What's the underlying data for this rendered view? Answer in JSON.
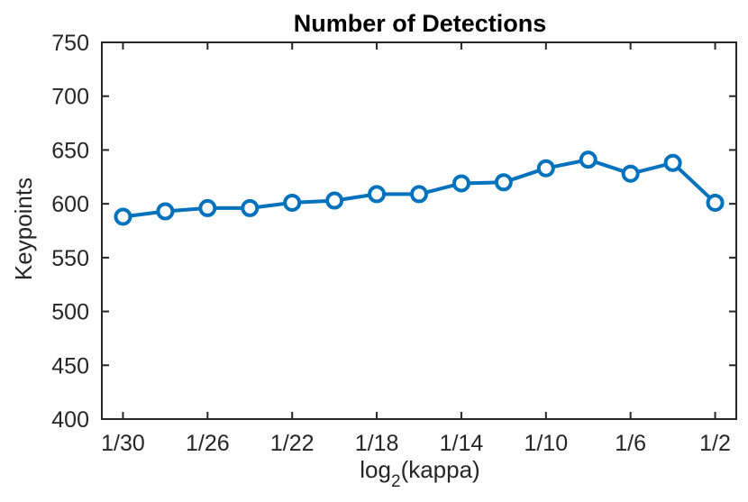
{
  "chart_data": {
    "type": "line",
    "title": "Number of Detections",
    "xlabel": "log",
    "xlabel_subscript": "2",
    "xlabel_suffix": "(kappa)",
    "ylabel": "Keypoints",
    "ylim": [
      400,
      750
    ],
    "yticks": [
      "400",
      "450",
      "500",
      "550",
      "600",
      "650",
      "700",
      "750"
    ],
    "xticks": [
      {
        "value": 30,
        "label": "1/30"
      },
      {
        "value": 26,
        "label": "1/26"
      },
      {
        "value": 22,
        "label": "1/22"
      },
      {
        "value": 18,
        "label": "1/18"
      },
      {
        "value": 14,
        "label": "1/14"
      },
      {
        "value": 10,
        "label": "1/10"
      },
      {
        "value": 6,
        "label": "1/6"
      },
      {
        "value": 2,
        "label": "1/2"
      }
    ],
    "xlim": [
      31,
      1
    ],
    "grid": false,
    "marker": "circle",
    "series_color": "#0072BD",
    "x": [
      30,
      28,
      26,
      24,
      22,
      20,
      18,
      16,
      14,
      12,
      10,
      8,
      6,
      4,
      2
    ],
    "values": [
      588,
      593,
      596,
      596,
      601,
      603,
      609,
      609,
      619,
      620,
      633,
      641,
      628,
      638,
      601
    ]
  }
}
